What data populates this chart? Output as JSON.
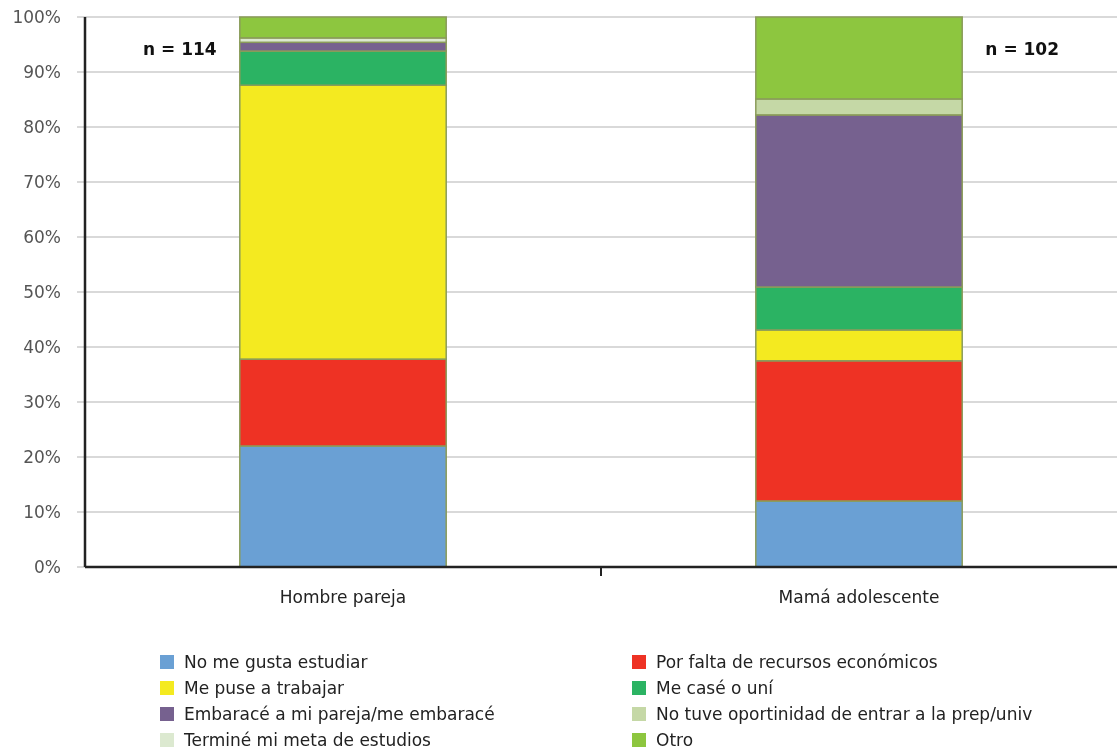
{
  "chart_data": {
    "type": "bar",
    "stacked": true,
    "categories": [
      "Hombre pareja",
      "Mamá adolescente"
    ],
    "series": [
      {
        "name": "No me gusta estudiar",
        "color": "#6aa0d4",
        "values": [
          22.0,
          12.0
        ]
      },
      {
        "name": "Por falta de recursos económicos",
        "color": "#ee3224",
        "values": [
          15.8,
          25.5
        ]
      },
      {
        "name": "Me puse a trabajar",
        "color": "#f4ea20",
        "values": [
          49.8,
          5.6
        ]
      },
      {
        "name": "Me casé o uní",
        "color": "#2bb363",
        "values": [
          6.2,
          7.8
        ]
      },
      {
        "name": "Embaracé a mi pareja/me embaracé",
        "color": "#76618f",
        "values": [
          1.6,
          31.3
        ]
      },
      {
        "name": "No tuve oportinidad de entrar a la prep/univ",
        "color": "#c5d8a6",
        "values": [
          0,
          2.9
        ]
      },
      {
        "name": "Terminé mi meta de estudios",
        "color": "#dce9d0",
        "values": [
          0.8,
          0
        ]
      },
      {
        "name": "Otro",
        "color": "#8dc63f",
        "values": [
          3.8,
          14.9
        ]
      }
    ],
    "ylim": [
      0,
      100
    ],
    "yticks": [
      {
        "value": 0,
        "label": "0%"
      },
      {
        "value": 10,
        "label": "10%"
      },
      {
        "value": 20,
        "label": "20%"
      },
      {
        "value": 30,
        "label": "30%"
      },
      {
        "value": 40,
        "label": "40%"
      },
      {
        "value": 50,
        "label": "50%"
      },
      {
        "value": 60,
        "label": "60%"
      },
      {
        "value": 70,
        "label": "70%"
      },
      {
        "value": 80,
        "label": "80%"
      },
      {
        "value": 90,
        "label": "90%"
      },
      {
        "value": 100,
        "label": "100%"
      }
    ],
    "grid": "y",
    "legend": "bottom",
    "annotations": [
      "n = 114",
      "n = 102"
    ]
  }
}
